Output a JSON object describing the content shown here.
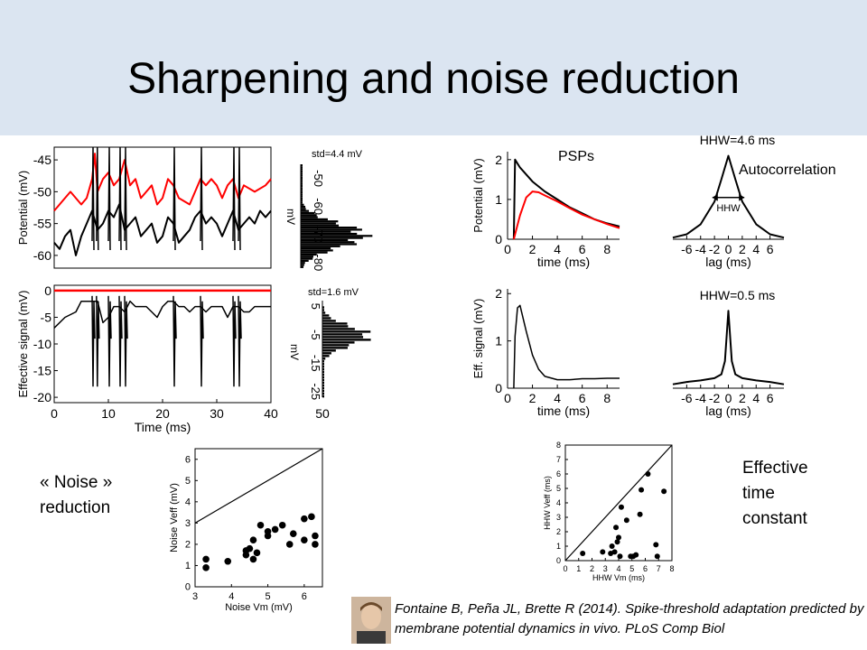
{
  "slide": {
    "title": "Sharpening and noise reduction",
    "labels": {
      "psps": "PSPs",
      "autocorrelation": "Autocorrelation",
      "noise_reduction": "« Noise »\nreduction",
      "effective_time_constant": "Effective\ntime\nconstant"
    },
    "citation": "Fontaine B, Peña JL, Brette R (2014). Spike-threshold adaptation predicted by membrane potential dynamics in vivo. PLoS Comp Biol"
  },
  "chart_data": [
    {
      "type": "line",
      "panel": "membrane-potential",
      "ylabel": "Potential (mV)",
      "yticks": [
        -45,
        -50,
        -55,
        -60
      ],
      "xlim": [
        0,
        40
      ],
      "series": [
        {
          "color": "#ff0000",
          "x": [
            0,
            2,
            3,
            5,
            6,
            7,
            7.5,
            8,
            9,
            10,
            11,
            12,
            13,
            14,
            15,
            16,
            17,
            18,
            19,
            20,
            21,
            22,
            23,
            25,
            26,
            27,
            28,
            29,
            30,
            31,
            32,
            33,
            34,
            35,
            37,
            39,
            40
          ],
          "y": [
            -53,
            -51,
            -50,
            -52,
            -51,
            -48,
            -44,
            -50,
            -48,
            -47,
            -49,
            -48,
            -45,
            -49,
            -48,
            -51,
            -50,
            -49,
            -52,
            -51,
            -48,
            -49,
            -51,
            -52,
            -50,
            -48,
            -49,
            -48,
            -49,
            -51,
            -49,
            -48,
            -51,
            -49,
            -50,
            -49,
            -48
          ]
        },
        {
          "color": "#000000",
          "x": [
            0,
            1,
            2,
            3,
            4,
            5,
            6,
            7,
            8,
            9,
            10,
            11,
            12,
            13,
            14,
            15,
            16,
            17,
            18,
            19,
            20,
            21,
            22,
            23,
            24,
            25,
            26,
            27,
            28,
            29,
            30,
            31,
            32,
            33,
            34,
            35,
            36,
            37,
            38,
            39,
            40
          ],
          "y": [
            -58,
            -59,
            -57,
            -56,
            -60,
            -57,
            -55,
            -53,
            -56,
            -55,
            -53,
            -54,
            -52,
            -56,
            -55,
            -54,
            -57,
            -56,
            -55,
            -58,
            -57,
            -54,
            -55,
            -58,
            -57,
            -56,
            -54,
            -53,
            -55,
            -54,
            -55,
            -57,
            -55,
            -53,
            -56,
            -55,
            -54,
            -55,
            -53,
            -54,
            -53
          ]
        }
      ],
      "spikes_x": [
        7,
        7.8,
        10,
        12,
        13,
        22,
        27,
        33,
        34
      ],
      "histogram": {
        "label": "std=4.4 mV",
        "xlabel": "mV",
        "ticks": [
          -50,
          -60,
          -70,
          -80
        ]
      }
    },
    {
      "type": "line",
      "panel": "effective-signal",
      "ylabel": "Effective signal (mV)",
      "xlabel": "Time (ms)",
      "yticks": [
        0,
        -5,
        -10,
        -15,
        -20
      ],
      "xticks": [
        0,
        10,
        20,
        30,
        40
      ],
      "xlim": [
        0,
        40
      ],
      "threshold": {
        "y": 0,
        "color": "#ff0000"
      },
      "series": [
        {
          "color": "#000000",
          "x": [
            0,
            2,
            4,
            5,
            6,
            7,
            8,
            9,
            10,
            11,
            12,
            13,
            14,
            15,
            16,
            17,
            18,
            19,
            20,
            21,
            22,
            23,
            24,
            25,
            26,
            27,
            28,
            29,
            30,
            31,
            32,
            33,
            34,
            35,
            36,
            37,
            38,
            39,
            40
          ],
          "y": [
            -7,
            -5,
            -4,
            -2,
            -2,
            -2,
            -2,
            -6,
            -5,
            -3,
            -3,
            -4,
            -2,
            -3,
            -3,
            -3,
            -4,
            -5,
            -3,
            -2,
            -2,
            -3,
            -3,
            -4,
            -3,
            -3,
            -4,
            -3,
            -3,
            -3,
            -5,
            -3,
            -3,
            -4,
            -4,
            -3,
            -3,
            -3,
            -3
          ]
        }
      ],
      "spikes_x": [
        7,
        7.8,
        10,
        12,
        13,
        22,
        27,
        33,
        34
      ],
      "histogram": {
        "label": "std=1.6 mV",
        "xlabel": "mV",
        "ticks": [
          5,
          -5,
          -15,
          -25
        ],
        "xtick": "50"
      }
    },
    {
      "type": "line",
      "panel": "psps",
      "ylabel": "Potential (mV)",
      "xlabel": "time (ms)",
      "yticks": [
        0,
        1,
        2
      ],
      "xticks": [
        0,
        2,
        4,
        6,
        8
      ],
      "series": [
        {
          "color": "#000000",
          "x": [
            0.5,
            0.6,
            1,
            2,
            3,
            4,
            5,
            6,
            7,
            8,
            9
          ],
          "y": [
            0,
            2,
            1.8,
            1.45,
            1.2,
            1.0,
            0.8,
            0.65,
            0.5,
            0.4,
            0.32
          ]
        },
        {
          "color": "#ff0000",
          "x": [
            0.5,
            1,
            1.5,
            2,
            2.5,
            3,
            4,
            5,
            6,
            7,
            8,
            9
          ],
          "y": [
            0,
            0.6,
            1.05,
            1.2,
            1.18,
            1.1,
            0.95,
            0.78,
            0.62,
            0.5,
            0.38,
            0.28
          ]
        }
      ]
    },
    {
      "type": "line",
      "panel": "autocorr-1",
      "title": "HHW=4.6 ms",
      "xlabel": "lag (ms)",
      "xticks": [
        -6,
        -4,
        -2,
        0,
        2,
        4,
        6
      ],
      "annotation": "HHW",
      "series": [
        {
          "color": "#000000",
          "x": [
            -8,
            -6,
            -4,
            -2,
            -1,
            0,
            1,
            2,
            4,
            6,
            8
          ],
          "y": [
            0.02,
            0.06,
            0.18,
            0.45,
            0.72,
            1.0,
            0.72,
            0.45,
            0.18,
            0.06,
            0.02
          ]
        }
      ]
    },
    {
      "type": "line",
      "panel": "effective-psp",
      "ylabel": "Eff. signal (mV)",
      "xlabel": "time (ms)",
      "yticks": [
        0,
        1,
        2
      ],
      "xticks": [
        0,
        2,
        4,
        6,
        8
      ],
      "series": [
        {
          "color": "#000000",
          "x": [
            0.5,
            0.6,
            0.8,
            1,
            1.5,
            2,
            2.5,
            3,
            4,
            5,
            6,
            7,
            8,
            9
          ],
          "y": [
            0,
            1.1,
            1.7,
            1.75,
            1.2,
            0.7,
            0.4,
            0.25,
            0.18,
            0.18,
            0.2,
            0.2,
            0.21,
            0.21
          ]
        }
      ]
    },
    {
      "type": "line",
      "panel": "autocorr-2",
      "title": "HHW=0.5 ms",
      "xlabel": "lag (ms)",
      "xticks": [
        -6,
        -4,
        -2,
        0,
        2,
        4,
        6
      ],
      "series": [
        {
          "color": "#000000",
          "x": [
            -8,
            -6,
            -4,
            -2,
            -1,
            -0.5,
            0,
            0.5,
            1,
            2,
            4,
            6,
            8
          ],
          "y": [
            0.05,
            0.08,
            0.1,
            0.13,
            0.18,
            0.35,
            1.0,
            0.35,
            0.18,
            0.13,
            0.1,
            0.08,
            0.05
          ]
        }
      ]
    },
    {
      "type": "scatter",
      "panel": "noise-scatter",
      "xlabel": "Noise Vm (mV)",
      "ylabel": "Noise Veff (mV)",
      "xticks": [
        3,
        4,
        5,
        6
      ],
      "yticks": [
        0,
        1,
        2,
        3,
        4,
        5,
        6
      ],
      "xlim": [
        3,
        6.5
      ],
      "ylim": [
        0,
        6.5
      ],
      "diagonal": true,
      "points": [
        [
          3.3,
          0.9
        ],
        [
          3.3,
          1.3
        ],
        [
          3.9,
          1.2
        ],
        [
          4.4,
          1.5
        ],
        [
          4.4,
          1.7
        ],
        [
          4.5,
          1.8
        ],
        [
          4.6,
          1.3
        ],
        [
          4.6,
          2.2
        ],
        [
          4.7,
          1.6
        ],
        [
          4.8,
          2.9
        ],
        [
          5.0,
          2.4
        ],
        [
          5.0,
          2.6
        ],
        [
          5.2,
          2.7
        ],
        [
          5.4,
          2.9
        ],
        [
          5.6,
          2.0
        ],
        [
          5.7,
          2.5
        ],
        [
          6.0,
          3.2
        ],
        [
          6.0,
          2.2
        ],
        [
          6.2,
          3.3
        ],
        [
          6.3,
          2.4
        ],
        [
          6.3,
          2.0
        ]
      ]
    },
    {
      "type": "scatter",
      "panel": "hhw-scatter",
      "xlabel": "HHW Vm (ms)",
      "ylabel": "HHW Veff (ms)",
      "xticks": [
        0,
        1,
        2,
        3,
        4,
        5,
        6,
        7,
        8
      ],
      "yticks": [
        0,
        1,
        2,
        3,
        4,
        5,
        6,
        7,
        8
      ],
      "xlim": [
        0,
        8
      ],
      "ylim": [
        0,
        8
      ],
      "diagonal": true,
      "points": [
        [
          1.3,
          0.5
        ],
        [
          2.8,
          0.6
        ],
        [
          3.4,
          0.5
        ],
        [
          3.5,
          1.0
        ],
        [
          3.7,
          0.6
        ],
        [
          3.8,
          2.3
        ],
        [
          3.9,
          1.3
        ],
        [
          4.0,
          1.6
        ],
        [
          4.1,
          0.3
        ],
        [
          4.2,
          3.7
        ],
        [
          4.6,
          2.8
        ],
        [
          4.9,
          0.3
        ],
        [
          5.1,
          0.3
        ],
        [
          5.3,
          0.4
        ],
        [
          5.6,
          3.2
        ],
        [
          5.7,
          4.9
        ],
        [
          6.2,
          6.0
        ],
        [
          6.8,
          1.1
        ],
        [
          6.9,
          0.3
        ],
        [
          7.4,
          4.8
        ]
      ]
    }
  ]
}
